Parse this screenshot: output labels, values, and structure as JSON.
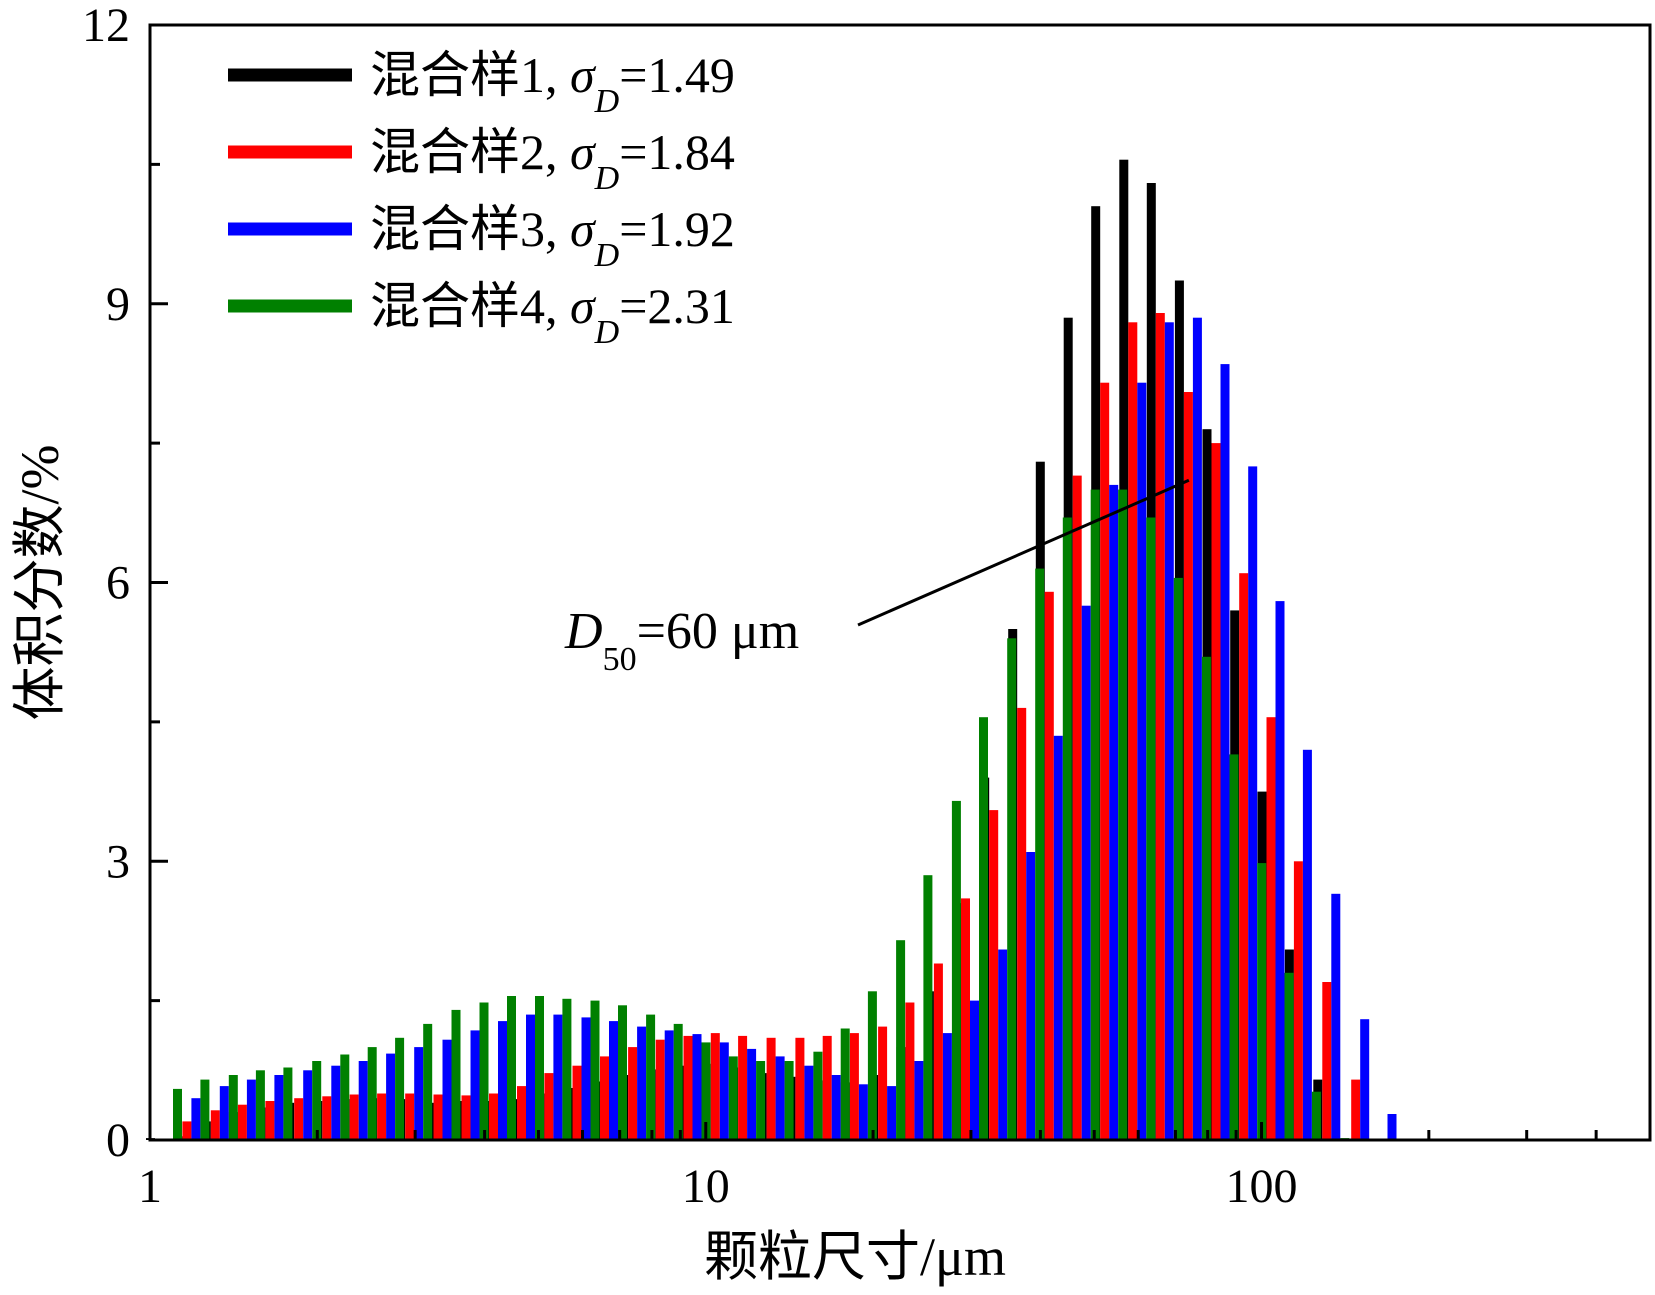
{
  "chart_data": {
    "type": "bar",
    "xscale": "log",
    "xlim": [
      1,
      500
    ],
    "ylim": [
      0,
      12
    ],
    "yticks": [
      0,
      3,
      6,
      9,
      12
    ],
    "xticks": [
      1,
      10,
      100
    ],
    "xlabel": "颗粒尺寸/μm",
    "ylabel": "体积分数/%",
    "legend_position": "top-left",
    "grid": false,
    "x": [
      1.0,
      1.12,
      1.26,
      1.41,
      1.58,
      1.78,
      2.0,
      2.24,
      2.51,
      2.82,
      3.17,
      3.56,
      3.99,
      4.48,
      5.02,
      5.64,
      6.32,
      7.1,
      7.96,
      8.93,
      10.0,
      11.2,
      12.6,
      14.2,
      15.9,
      17.8,
      20.0,
      22.4,
      25.2,
      28.2,
      31.7,
      35.6,
      39.9,
      44.8,
      50.2,
      56.4,
      63.2,
      71.0,
      79.6,
      89.3,
      100,
      112,
      126,
      142,
      159,
      178,
      200,
      224,
      252,
      283,
      317,
      356
    ],
    "series": [
      {
        "name": "混合样1",
        "sigma_D": "1.49",
        "color": "#000000",
        "values": [
          0.02,
          0.04,
          0.2,
          0.3,
          0.35,
          0.4,
          0.42,
          0.44,
          0.45,
          0.44,
          0.4,
          0.42,
          0.42,
          0.44,
          0.5,
          0.56,
          0.63,
          0.7,
          0.76,
          0.8,
          0.82,
          0.78,
          0.72,
          0.68,
          0.64,
          0.62,
          0.7,
          1.0,
          1.6,
          2.55,
          3.9,
          5.5,
          7.3,
          8.85,
          10.05,
          10.55,
          10.3,
          9.25,
          7.65,
          5.7,
          3.75,
          2.05,
          0.65,
          0.0,
          0,
          0,
          0,
          0,
          0,
          0,
          0,
          0
        ]
      },
      {
        "name": "混合样2",
        "sigma_D": "1.84",
        "color": "#ff0000",
        "values": [
          0.0,
          0.2,
          0.32,
          0.38,
          0.42,
          0.45,
          0.47,
          0.49,
          0.5,
          0.5,
          0.49,
          0.48,
          0.5,
          0.58,
          0.72,
          0.8,
          0.9,
          1.0,
          1.08,
          1.12,
          1.15,
          1.12,
          1.1,
          1.1,
          1.12,
          1.15,
          1.22,
          1.48,
          1.9,
          2.6,
          3.55,
          4.65,
          5.9,
          7.15,
          8.15,
          8.8,
          8.9,
          8.05,
          7.5,
          6.1,
          4.55,
          3.0,
          1.7,
          0.65,
          0,
          0,
          0,
          0,
          0,
          0,
          0,
          0
        ]
      },
      {
        "name": "混合样3",
        "sigma_D": "1.92",
        "color": "#0000ff",
        "values": [
          0.0,
          0.45,
          0.58,
          0.65,
          0.7,
          0.75,
          0.8,
          0.85,
          0.93,
          1.0,
          1.08,
          1.18,
          1.28,
          1.35,
          1.35,
          1.32,
          1.28,
          1.22,
          1.18,
          1.14,
          1.05,
          0.98,
          0.9,
          0.8,
          0.7,
          0.6,
          0.58,
          0.85,
          1.15,
          1.5,
          2.05,
          3.1,
          4.35,
          5.75,
          7.05,
          8.15,
          8.8,
          8.85,
          8.35,
          7.25,
          5.8,
          4.2,
          2.65,
          1.3,
          0.28,
          0.0,
          0,
          0,
          0,
          0,
          0,
          0
        ]
      },
      {
        "name": "混合样4",
        "sigma_D": "2.31",
        "color": "#008000",
        "values": [
          0.55,
          0.65,
          0.7,
          0.75,
          0.78,
          0.85,
          0.92,
          1.0,
          1.1,
          1.25,
          1.4,
          1.48,
          1.55,
          1.55,
          1.52,
          1.5,
          1.45,
          1.35,
          1.25,
          1.05,
          0.9,
          0.85,
          0.85,
          0.95,
          1.2,
          1.6,
          2.15,
          2.85,
          3.65,
          4.55,
          5.4,
          6.15,
          6.7,
          7.0,
          7.0,
          6.7,
          6.05,
          5.2,
          4.15,
          2.98,
          1.8,
          0.52,
          0.02,
          0,
          0,
          0,
          0,
          0,
          0,
          0,
          0,
          0
        ]
      }
    ],
    "annotation": {
      "text_main": "D",
      "text_sub": "50",
      "text_rest": "=60 μm"
    }
  },
  "legend": [
    {
      "label": "混合样1, ",
      "sigma": "σ",
      "sub": "D",
      "value": "=1.49",
      "color": "#000000"
    },
    {
      "label": "混合样2, ",
      "sigma": "σ",
      "sub": "D",
      "value": "=1.84",
      "color": "#ff0000"
    },
    {
      "label": "混合样3, ",
      "sigma": "σ",
      "sub": "D",
      "value": "=1.92",
      "color": "#0000ff"
    },
    {
      "label": "混合样4, ",
      "sigma": "σ",
      "sub": "D",
      "value": "=2.31",
      "color": "#008000"
    }
  ],
  "xtick_labels": [
    "1",
    "10",
    "100"
  ],
  "ytick_labels": [
    "0",
    "3",
    "6",
    "9",
    "12"
  ],
  "axis_titles": {
    "x": "颗粒尺寸/μm",
    "y": "体积分数/%"
  }
}
